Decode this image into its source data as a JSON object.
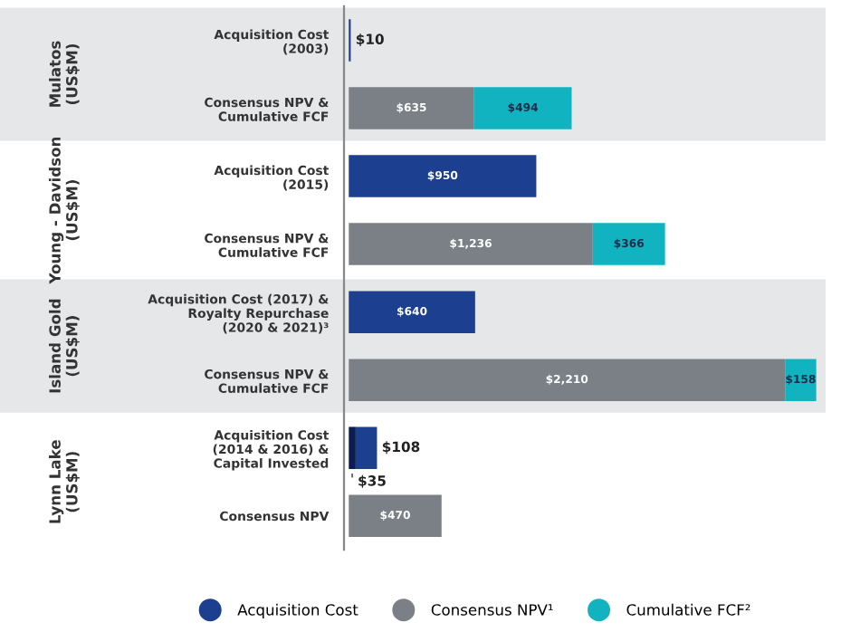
{
  "chart_data": {
    "type": "bar",
    "orientation": "horizontal",
    "stacked": true,
    "categories": [
      "Acquisition Cost\n(2003)",
      "Consensus NPV &\nCumulative FCF",
      "Acquisition Cost\n(2015)",
      "Consensus NPV &\nCumulative FCF",
      "Acquisition Cost (2017) &\nRoyalty Repurchase\n(2020 & 2021)³",
      "Consensus NPV &\nCumulative FCF",
      "Acquisition Cost\n(2014 & 2016) &\nCapital Invested",
      "Consensus NPV"
    ],
    "series": [
      {
        "color": "#0b1d4d",
        "values": [
          null,
          null,
          null,
          null,
          null,
          null,
          35,
          null
        ],
        "value_labels": [
          null,
          null,
          null,
          null,
          null,
          null,
          "$35",
          null
        ]
      },
      {
        "name": "Acquisition Cost",
        "color": "#1c3f8f",
        "values": [
          10,
          null,
          950,
          null,
          640,
          null,
          108,
          null
        ],
        "value_labels": [
          "$10",
          null,
          "$950",
          null,
          "$640",
          null,
          "$108",
          null
        ]
      },
      {
        "name": "Consensus NPV¹",
        "color": "#7b8087",
        "values": [
          null,
          635,
          null,
          1236,
          null,
          2210,
          null,
          470
        ],
        "value_labels": [
          null,
          "$635",
          null,
          "$1,236",
          null,
          "$2,210",
          null,
          "$470"
        ]
      },
      {
        "name": "Cumulative FCF²",
        "color": "#12b3c0",
        "values": [
          null,
          494,
          null,
          366,
          null,
          158,
          null,
          null
        ],
        "value_labels": [
          null,
          "$494",
          null,
          "$366",
          null,
          "$158",
          null,
          null
        ]
      }
    ],
    "annotations": [
      "Mulatos\n(US$M)",
      "Young - Davidson\n(US$M)",
      "Island Gold\n(US$M)",
      "Lynn Lake\n(US$M)"
    ],
    "legend": "bottom",
    "grid": false
  }
}
